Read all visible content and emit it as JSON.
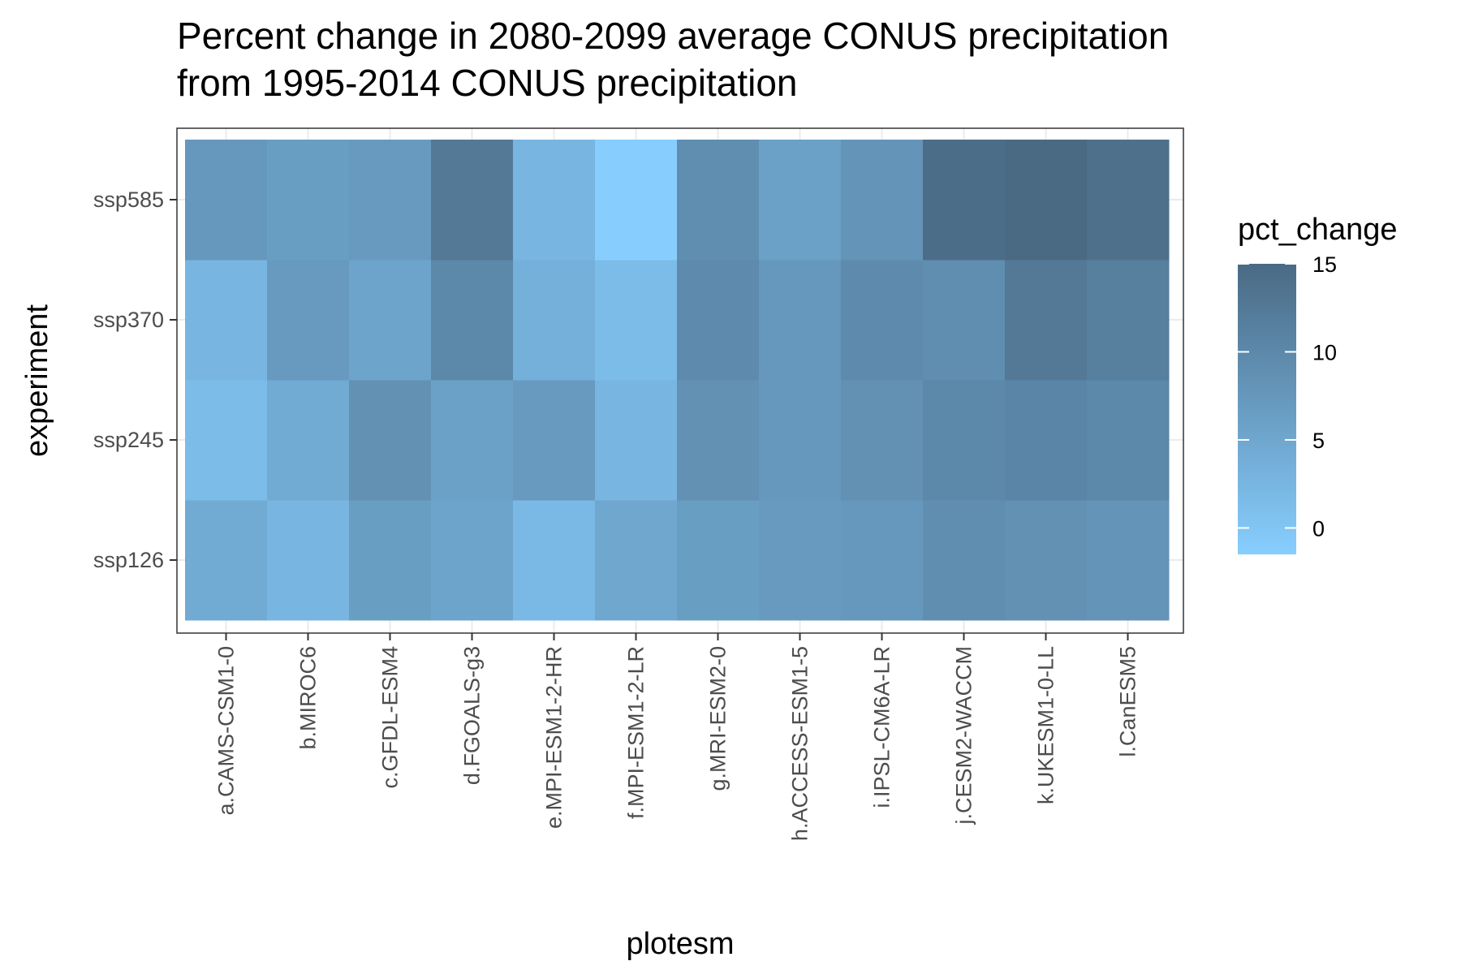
{
  "chart_data": {
    "type": "heatmap",
    "title_line1": "Percent change in 2080-2099 average CONUS precipitation",
    "title_line2": "from 1995-2014 CONUS precipitation",
    "xlabel": "plotesm",
    "ylabel": "experiment",
    "x_categories": [
      "a.CAMS-CSM1-0",
      "b.MIROC6",
      "c.GFDL-ESM4",
      "d.FGOALS-g3",
      "e.MPI-ESM1-2-HR",
      "f.MPI-ESM1-2-LR",
      "g.MRI-ESM2-0",
      "h.ACCESS-ESM1-5",
      "i.IPSL-CM6A-LR",
      "j.CESM2-WACCM",
      "k.UKESM1-0-LL",
      "l.CanESM5"
    ],
    "y_categories": [
      "ssp126",
      "ssp245",
      "ssp370",
      "ssp585"
    ],
    "values": {
      "ssp585": [
        7.5,
        6.5,
        7.0,
        12.5,
        2.5,
        -1.5,
        9.0,
        6.0,
        8.0,
        14.5,
        15.0,
        14.0
      ],
      "ssp370": [
        2.5,
        7.0,
        5.5,
        10.0,
        3.5,
        1.5,
        9.5,
        7.5,
        9.5,
        9.0,
        12.5,
        11.5
      ],
      "ssp245": [
        1.5,
        4.5,
        8.5,
        6.0,
        7.0,
        2.5,
        8.5,
        7.5,
        8.5,
        10.0,
        10.5,
        10.0
      ],
      "ssp126": [
        4.5,
        2.5,
        6.5,
        5.5,
        2.0,
        5.0,
        6.5,
        7.0,
        7.5,
        9.0,
        8.5,
        8.0
      ]
    },
    "legend": {
      "title": "pct_change",
      "ticks": [
        0,
        5,
        10,
        15
      ],
      "tick_labels": [
        "0",
        "5",
        "10",
        "15"
      ],
      "range": [
        -1.5,
        15
      ],
      "low_color": "#87ceff",
      "high_color": "#4a6a84",
      "placement": "right"
    },
    "grid": true,
    "colors": {
      "panel_border": "#333333",
      "grid_major": "#ebebeb",
      "grid_minor": "#f5f5f5",
      "tick_color": "#333333"
    }
  }
}
